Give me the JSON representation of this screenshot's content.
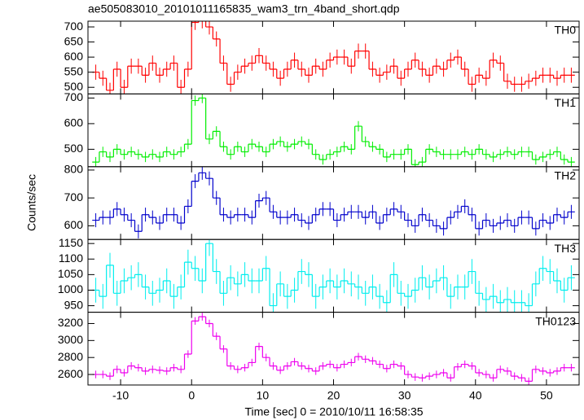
{
  "title": "ae505083010_20101011165835_wam3_trn_4band_short.qdp",
  "ylabel": "Counts/sec",
  "xlabel": "Time [sec] 0 = 2010/10/11 16:58:35",
  "chart_data": [
    {
      "type": "step",
      "xlim": [
        -14.6,
        54.6
      ],
      "xticks": [
        -10,
        0,
        10,
        20,
        30,
        40,
        50
      ],
      "xticklabels": false,
      "ylim": [
        478,
        719
      ],
      "yticks": [
        500,
        550,
        600,
        650,
        700
      ],
      "yerr": 25,
      "x": [
        -13.5,
        -12.5,
        -11.5,
        -10.5,
        -9.5,
        -8.5,
        -7.5,
        -6.5,
        -5.5,
        -4.5,
        -3.5,
        -2.5,
        -1.5,
        -0.5,
        0.5,
        1.5,
        2.5,
        3.5,
        4.5,
        5.5,
        6.5,
        7.5,
        8.5,
        9.5,
        10.5,
        11.5,
        12.5,
        13.5,
        14.5,
        15.5,
        16.5,
        17.5,
        18.5,
        19.5,
        20.5,
        21.5,
        22.5,
        23.5,
        24.5,
        25.5,
        26.5,
        27.5,
        28.5,
        29.5,
        30.5,
        31.5,
        32.5,
        33.5,
        34.5,
        35.5,
        36.5,
        37.5,
        38.5,
        39.5,
        40.5,
        41.5,
        42.5,
        43.5,
        44.5,
        45.5,
        46.5,
        47.5,
        48.5,
        49.5,
        50.5,
        51.5,
        52.5,
        53.5
      ],
      "series": [
        {
          "name": "TH0",
          "color": "#ff0000",
          "values": [
            550,
            530,
            490,
            560,
            500,
            570,
            570,
            540,
            580,
            540,
            560,
            580,
            500,
            560,
            715,
            720,
            700,
            660,
            580,
            510,
            550,
            570,
            580,
            605,
            580,
            560,
            530,
            560,
            590,
            560,
            540,
            570,
            560,
            590,
            600,
            600,
            570,
            620,
            620,
            560,
            540,
            550,
            570,
            530,
            560,
            590,
            560,
            540,
            570,
            560,
            590,
            600,
            560,
            510,
            540,
            530,
            590,
            580,
            520,
            510,
            510,
            520,
            530,
            540,
            540,
            530,
            540,
            540
          ]
        }
      ]
    },
    {
      "type": "step",
      "xlim": [
        -14.6,
        54.6
      ],
      "xticks": [
        -10,
        0,
        10,
        20,
        30,
        40,
        50
      ],
      "xticklabels": false,
      "ylim": [
        432,
        716
      ],
      "yticks": [
        500,
        600,
        700
      ],
      "yerr": 20,
      "x": [
        -13.5,
        -12.5,
        -11.5,
        -10.5,
        -9.5,
        -8.5,
        -7.5,
        -6.5,
        -5.5,
        -4.5,
        -3.5,
        -2.5,
        -1.5,
        -0.5,
        0.5,
        1.5,
        2.5,
        3.5,
        4.5,
        5.5,
        6.5,
        7.5,
        8.5,
        9.5,
        10.5,
        11.5,
        12.5,
        13.5,
        14.5,
        15.5,
        16.5,
        17.5,
        18.5,
        19.5,
        20.5,
        21.5,
        22.5,
        23.5,
        24.5,
        25.5,
        26.5,
        27.5,
        28.5,
        29.5,
        30.5,
        31.5,
        32.5,
        33.5,
        34.5,
        35.5,
        36.5,
        37.5,
        38.5,
        39.5,
        40.5,
        41.5,
        42.5,
        43.5,
        44.5,
        45.5,
        46.5,
        47.5,
        48.5,
        49.5,
        50.5,
        51.5,
        52.5,
        53.5
      ],
      "series": [
        {
          "name": "TH1",
          "color": "#00ee00",
          "values": [
            450,
            490,
            470,
            500,
            480,
            490,
            480,
            470,
            480,
            470,
            490,
            480,
            490,
            520,
            690,
            700,
            540,
            570,
            510,
            480,
            510,
            490,
            520,
            510,
            490,
            520,
            530,
            510,
            520,
            530,
            520,
            480,
            460,
            480,
            490,
            510,
            500,
            590,
            530,
            510,
            500,
            470,
            480,
            480,
            500,
            440,
            450,
            500,
            490,
            480,
            480,
            480,
            490,
            480,
            500,
            480,
            470,
            480,
            490,
            480,
            490,
            490,
            460,
            470,
            480,
            490,
            460,
            450
          ]
        }
      ]
    },
    {
      "type": "step",
      "xlim": [
        -14.6,
        54.6
      ],
      "xticks": [
        -10,
        0,
        10,
        20,
        30,
        40,
        50
      ],
      "xticklabels": false,
      "ylim": [
        551,
        812
      ],
      "yticks": [
        600,
        700,
        800
      ],
      "yerr": 25,
      "x": [
        -13.5,
        -12.5,
        -11.5,
        -10.5,
        -9.5,
        -8.5,
        -7.5,
        -6.5,
        -5.5,
        -4.5,
        -3.5,
        -2.5,
        -1.5,
        -0.5,
        0.5,
        1.5,
        2.5,
        3.5,
        4.5,
        5.5,
        6.5,
        7.5,
        8.5,
        9.5,
        10.5,
        11.5,
        12.5,
        13.5,
        14.5,
        15.5,
        16.5,
        17.5,
        18.5,
        19.5,
        20.5,
        21.5,
        22.5,
        23.5,
        24.5,
        25.5,
        26.5,
        27.5,
        28.5,
        29.5,
        30.5,
        31.5,
        32.5,
        33.5,
        34.5,
        35.5,
        36.5,
        37.5,
        38.5,
        39.5,
        40.5,
        41.5,
        42.5,
        43.5,
        44.5,
        45.5,
        46.5,
        47.5,
        48.5,
        49.5,
        50.5,
        51.5,
        52.5,
        53.5
      ],
      "series": [
        {
          "name": "TH2",
          "color": "#0000cc",
          "values": [
            620,
            630,
            630,
            660,
            640,
            620,
            580,
            640,
            630,
            610,
            640,
            640,
            610,
            670,
            760,
            790,
            770,
            700,
            640,
            630,
            640,
            640,
            630,
            690,
            700,
            650,
            630,
            630,
            640,
            620,
            610,
            640,
            660,
            660,
            620,
            640,
            650,
            650,
            630,
            650,
            610,
            640,
            660,
            650,
            620,
            600,
            640,
            620,
            600,
            590,
            630,
            650,
            670,
            640,
            590,
            620,
            600,
            610,
            620,
            600,
            630,
            630,
            590,
            620,
            610,
            640,
            630,
            650
          ]
        }
      ]
    },
    {
      "type": "step",
      "xlim": [
        -14.6,
        54.6
      ],
      "xticks": [
        -10,
        0,
        10,
        20,
        30,
        40,
        50
      ],
      "xticklabels": false,
      "ylim": [
        929,
        1163
      ],
      "yticks": [
        950,
        1000,
        1050,
        1100,
        1150
      ],
      "yerr": 40,
      "x": [
        -13.5,
        -12.5,
        -11.5,
        -10.5,
        -9.5,
        -8.5,
        -7.5,
        -6.5,
        -5.5,
        -4.5,
        -3.5,
        -2.5,
        -1.5,
        -0.5,
        0.5,
        1.5,
        2.5,
        3.5,
        4.5,
        5.5,
        6.5,
        7.5,
        8.5,
        9.5,
        10.5,
        11.5,
        12.5,
        13.5,
        14.5,
        15.5,
        16.5,
        17.5,
        18.5,
        19.5,
        20.5,
        21.5,
        22.5,
        23.5,
        24.5,
        25.5,
        26.5,
        27.5,
        28.5,
        29.5,
        30.5,
        31.5,
        32.5,
        33.5,
        34.5,
        35.5,
        36.5,
        37.5,
        38.5,
        39.5,
        40.5,
        41.5,
        42.5,
        43.5,
        44.5,
        45.5,
        46.5,
        47.5,
        48.5,
        49.5,
        50.5,
        51.5,
        52.5,
        53.5
      ],
      "series": [
        {
          "name": "TH3",
          "color": "#00eeee",
          "values": [
            1000,
            980,
            1080,
            990,
            1030,
            1040,
            1050,
            1010,
            990,
            1000,
            1030,
            980,
            1010,
            1090,
            1070,
            1030,
            1150,
            1060,
            990,
            1040,
            1020,
            1050,
            1030,
            1030,
            1070,
            950,
            1020,
            980,
            1000,
            1060,
            1050,
            980,
            1010,
            1030,
            1010,
            1030,
            1020,
            1010,
            990,
            1010,
            980,
            960,
            1050,
            990,
            980,
            1000,
            1040,
            1010,
            1030,
            1040,
            980,
            1010,
            1010,
            1060,
            990,
            970,
            980,
            960,
            970,
            960,
            960,
            950,
            1020,
            1070,
            1060,
            1030,
            1000,
            1040
          ]
        }
      ]
    },
    {
      "type": "step",
      "xlim": [
        -14.6,
        54.6
      ],
      "xticks": [
        -10,
        0,
        10,
        20,
        30,
        40,
        50
      ],
      "xticklabels": true,
      "ylim": [
        2476,
        3333
      ],
      "yticks": [
        2600,
        2800,
        3000,
        3200
      ],
      "yerr": 45,
      "x": [
        -13.5,
        -12.5,
        -11.5,
        -10.5,
        -9.5,
        -8.5,
        -7.5,
        -6.5,
        -5.5,
        -4.5,
        -3.5,
        -2.5,
        -1.5,
        -0.5,
        0.5,
        1.5,
        2.5,
        3.5,
        4.5,
        5.5,
        6.5,
        7.5,
        8.5,
        9.5,
        10.5,
        11.5,
        12.5,
        13.5,
        14.5,
        15.5,
        16.5,
        17.5,
        18.5,
        19.5,
        20.5,
        21.5,
        22.5,
        23.5,
        24.5,
        25.5,
        26.5,
        27.5,
        28.5,
        29.5,
        30.5,
        31.5,
        32.5,
        33.5,
        34.5,
        35.5,
        36.5,
        37.5,
        38.5,
        39.5,
        40.5,
        41.5,
        42.5,
        43.5,
        44.5,
        45.5,
        46.5,
        47.5,
        48.5,
        49.5,
        50.5,
        51.5,
        52.5,
        53.5
      ],
      "series": [
        {
          "name": "TH0123",
          "color": "#ee00ee",
          "values": [
            2600,
            2600,
            2580,
            2660,
            2620,
            2700,
            2680,
            2640,
            2660,
            2650,
            2640,
            2680,
            2660,
            2840,
            3230,
            3280,
            3200,
            3050,
            2900,
            2700,
            2660,
            2680,
            2740,
            2930,
            2800,
            2700,
            2650,
            2700,
            2750,
            2700,
            2670,
            2640,
            2700,
            2720,
            2680,
            2720,
            2740,
            2810,
            2780,
            2760,
            2720,
            2670,
            2720,
            2700,
            2600,
            2570,
            2560,
            2580,
            2600,
            2620,
            2560,
            2690,
            2720,
            2700,
            2620,
            2600,
            2560,
            2660,
            2640,
            2580,
            2560,
            2520,
            2660,
            2640,
            2620,
            2640,
            2680,
            2680
          ]
        }
      ]
    }
  ]
}
